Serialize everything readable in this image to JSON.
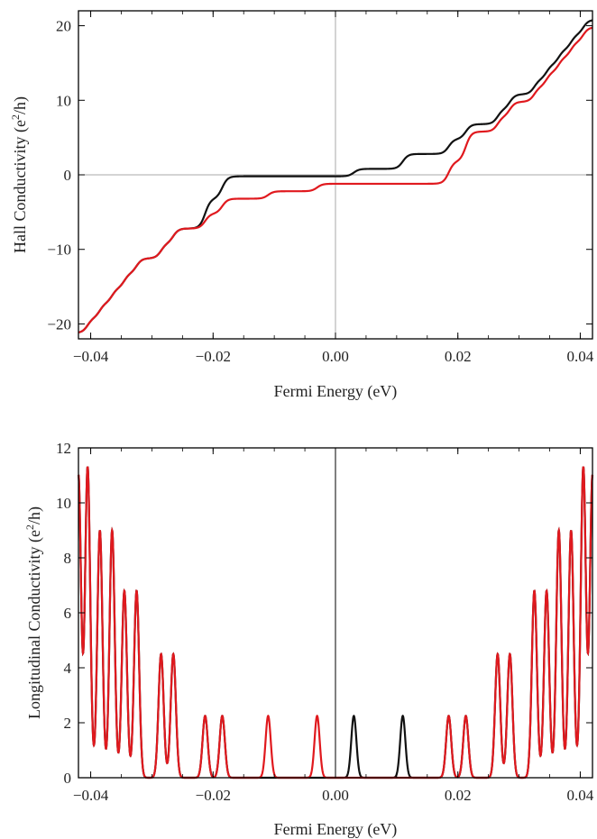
{
  "colors": {
    "black_series": "#111111",
    "red_series": "#e0191e",
    "zero_axis_top": "#a8a8a8",
    "zero_axis_bottom": "#000000"
  },
  "chart_data": [
    {
      "type": "line",
      "xlabel": "Fermi Energy (eV)",
      "ylabel": "Hall Conductivity (e²/h)",
      "ylabel_main": "Hall Conductivity (e",
      "ylabel_sup": "2",
      "ylabel_end": "/h)",
      "xlim": [
        -0.042,
        0.042
      ],
      "ylim": [
        -22,
        22
      ],
      "xticks": [
        -0.04,
        -0.02,
        0.0,
        0.02,
        0.04
      ],
      "xtick_labels": [
        "−0.04",
        "−0.02",
        "0.00",
        "0.02",
        "0.04"
      ],
      "yticks": [
        -20,
        -10,
        0,
        10,
        20
      ],
      "ytick_labels": [
        "−20",
        "−10",
        "0",
        "10",
        "20"
      ],
      "series": [
        {
          "color": "black",
          "steps": [
            [
              -0.0405,
              2
            ],
            [
              -0.0385,
              2
            ],
            [
              -0.0365,
              2
            ],
            [
              -0.0345,
              2
            ],
            [
              -0.0325,
              2
            ],
            [
              -0.0285,
              2
            ],
            [
              -0.0265,
              2
            ],
            [
              -0.0213,
              4
            ],
            [
              -0.0185,
              3
            ],
            [
              0.003,
              1
            ],
            [
              0.011,
              2
            ],
            [
              0.0185,
              2
            ],
            [
              0.0213,
              2
            ],
            [
              0.0265,
              2
            ],
            [
              0.0285,
              2
            ],
            [
              0.0325,
              2
            ],
            [
              0.0345,
              2
            ],
            [
              0.0365,
              2
            ],
            [
              0.0385,
              2
            ],
            [
              0.0405,
              2
            ]
          ],
          "start": -21.2
        },
        {
          "color": "red",
          "steps": [
            [
              -0.0405,
              2
            ],
            [
              -0.0385,
              2
            ],
            [
              -0.0365,
              2
            ],
            [
              -0.0345,
              2
            ],
            [
              -0.0325,
              2
            ],
            [
              -0.0285,
              2
            ],
            [
              -0.0265,
              2
            ],
            [
              -0.0213,
              2
            ],
            [
              -0.0185,
              2
            ],
            [
              -0.011,
              1
            ],
            [
              -0.003,
              1
            ],
            [
              0.003,
              0
            ],
            [
              0.0185,
              3
            ],
            [
              0.0213,
              4
            ],
            [
              0.0265,
              2
            ],
            [
              0.0285,
              2
            ],
            [
              0.0325,
              2
            ],
            [
              0.0345,
              2
            ],
            [
              0.0365,
              2
            ],
            [
              0.0385,
              2
            ],
            [
              0.0405,
              2
            ]
          ],
          "start": -21.2
        }
      ]
    },
    {
      "type": "line",
      "xlabel": "Fermi Energy (eV)",
      "ylabel": "Longitudinal Conductivity (e²/h)",
      "ylabel_main": "Longitudinal Conductivity (e",
      "ylabel_sup": "2",
      "ylabel_end": "/h)",
      "xlim": [
        -0.042,
        0.042
      ],
      "ylim": [
        0,
        12
      ],
      "xticks": [
        -0.04,
        -0.02,
        0.0,
        0.02,
        0.04
      ],
      "xtick_labels": [
        "−0.04",
        "−0.02",
        "0.00",
        "0.02",
        "0.04"
      ],
      "yticks": [
        0,
        2,
        4,
        6,
        8,
        10,
        12
      ],
      "ytick_labels": [
        "0",
        "2",
        "4",
        "6",
        "8",
        "10",
        "12"
      ],
      "series": [
        {
          "color": "black",
          "peaks": [
            [
              -0.0405,
              11.3
            ],
            [
              -0.0385,
              9.0
            ],
            [
              -0.0365,
              9.0
            ],
            [
              -0.0345,
              6.8
            ],
            [
              -0.0325,
              6.8
            ],
            [
              -0.0285,
              4.5
            ],
            [
              -0.0265,
              4.5
            ],
            [
              -0.0213,
              2.25
            ],
            [
              -0.0185,
              2.25
            ],
            [
              0.003,
              2.25
            ],
            [
              0.011,
              2.25
            ],
            [
              0.0185,
              2.25
            ],
            [
              0.0213,
              2.25
            ],
            [
              0.0265,
              4.5
            ],
            [
              0.0285,
              4.5
            ],
            [
              0.0325,
              6.8
            ],
            [
              0.0345,
              6.8
            ],
            [
              0.0365,
              9.0
            ],
            [
              0.0385,
              9.0
            ],
            [
              0.0405,
              11.3
            ],
            [
              -0.042,
              11.0
            ],
            [
              0.042,
              11.0
            ]
          ]
        },
        {
          "color": "red",
          "peaks": [
            [
              -0.0405,
              11.3
            ],
            [
              -0.0385,
              9.0
            ],
            [
              -0.0365,
              9.0
            ],
            [
              -0.0345,
              6.8
            ],
            [
              -0.0325,
              6.8
            ],
            [
              -0.0285,
              4.5
            ],
            [
              -0.0265,
              4.5
            ],
            [
              -0.0213,
              2.25
            ],
            [
              -0.0185,
              2.25
            ],
            [
              -0.011,
              2.25
            ],
            [
              -0.003,
              2.25
            ],
            [
              0.0185,
              2.25
            ],
            [
              0.0213,
              2.25
            ],
            [
              0.0265,
              4.5
            ],
            [
              0.0285,
              4.5
            ],
            [
              0.0325,
              6.8
            ],
            [
              0.0345,
              6.8
            ],
            [
              0.0365,
              9.0
            ],
            [
              0.0385,
              9.0
            ],
            [
              0.0405,
              11.3
            ],
            [
              -0.042,
              11.0
            ],
            [
              0.042,
              11.0
            ]
          ]
        }
      ]
    }
  ]
}
